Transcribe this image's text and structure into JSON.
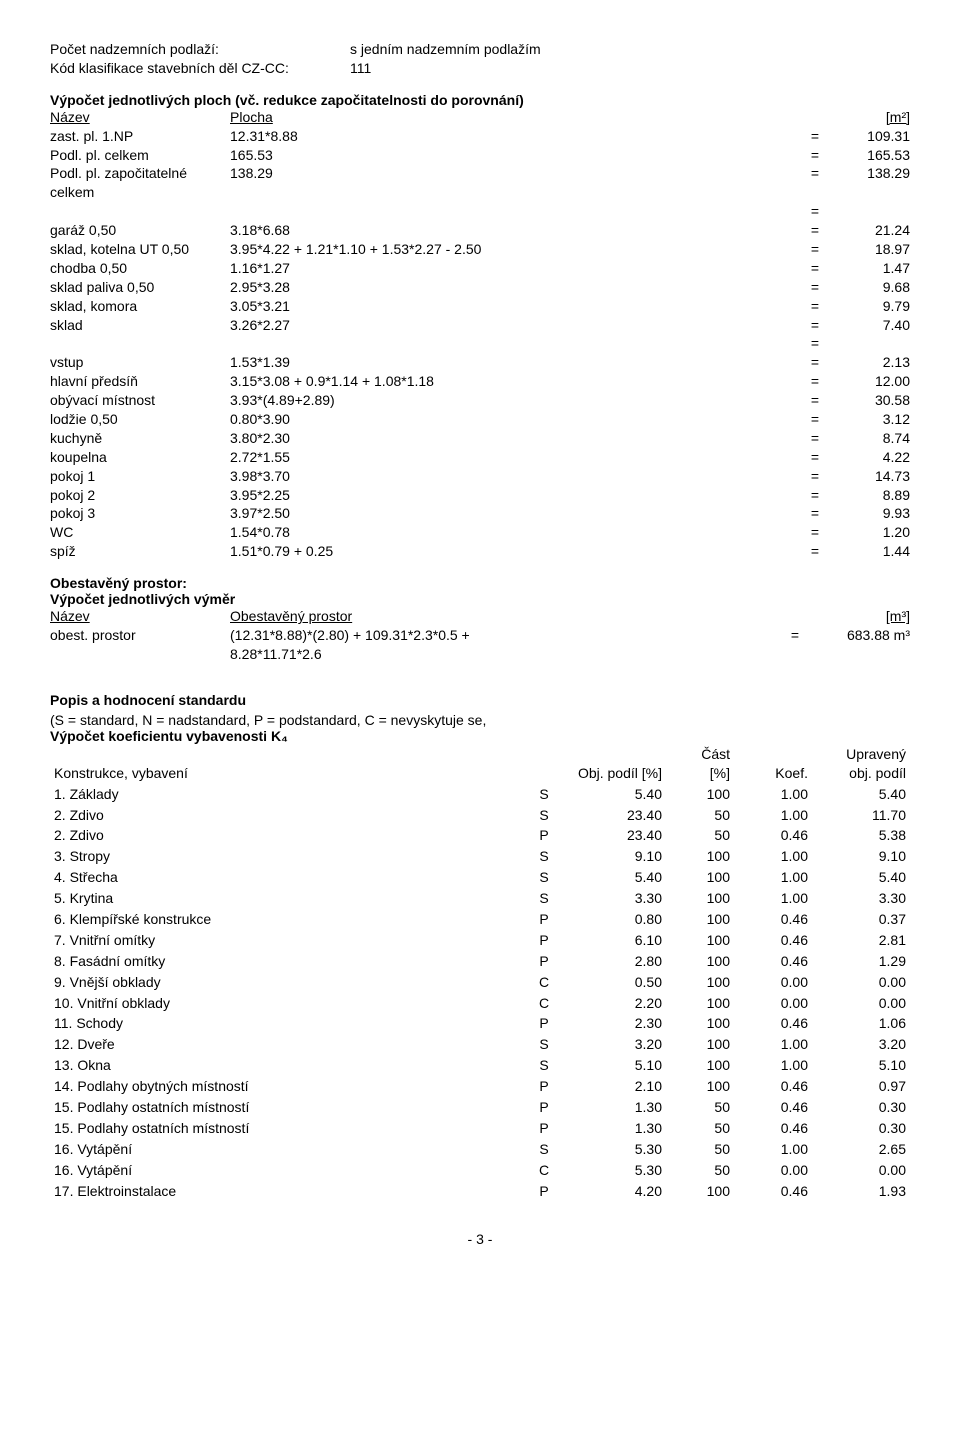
{
  "header": {
    "row1_label": "Počet nadzemních podlaží:",
    "row1_value": "s jedním nadzemním podlažím",
    "row2_label": "Kód klasifikace stavebních děl CZ-CC:",
    "row2_value": "111"
  },
  "area": {
    "title": "Výpočet jednotlivých ploch (vč. redukce započitatelnosti do porovnání)",
    "head_name": "Název",
    "head_area": "Plocha",
    "head_unit": "[m²]",
    "rows": [
      {
        "name": "zast. pl. 1.NP",
        "expr": "12.31*8.88",
        "eq": "=",
        "val": "109.31"
      },
      {
        "name": "Podl. pl. celkem",
        "expr": "165.53",
        "eq": "=",
        "val": "165.53"
      },
      {
        "name": "Podl. pl. započitatelné celkem",
        "expr": "138.29",
        "eq": "=",
        "val": "138.29"
      },
      {
        "name": "",
        "expr": "",
        "eq": "=",
        "val": ""
      },
      {
        "name": "garáž   0,50",
        "expr": "3.18*6.68",
        "eq": "=",
        "val": "21.24"
      },
      {
        "name": "sklad, kotelna UT   0,50",
        "expr": "3.95*4.22 + 1.21*1.10 + 1.53*2.27 - 2.50",
        "eq": "=",
        "val": "18.97"
      },
      {
        "name": "chodba   0,50",
        "expr": "1.16*1.27",
        "eq": "=",
        "val": "1.47"
      },
      {
        "name": "sklad paliva   0,50",
        "expr": "2.95*3.28",
        "eq": "=",
        "val": "9.68"
      },
      {
        "name": "sklad, komora",
        "expr": "3.05*3.21",
        "eq": "=",
        "val": "9.79"
      },
      {
        "name": "sklad",
        "expr": "3.26*2.27",
        "eq": "=",
        "val": "7.40"
      },
      {
        "name": "",
        "expr": "",
        "eq": "=",
        "val": ""
      },
      {
        "name": "vstup",
        "expr": "1.53*1.39",
        "eq": "=",
        "val": "2.13"
      },
      {
        "name": "hlavní předsíň",
        "expr": "3.15*3.08 + 0.9*1.14 + 1.08*1.18",
        "eq": "=",
        "val": "12.00"
      },
      {
        "name": "obývací místnost",
        "expr": "3.93*(4.89+2.89)",
        "eq": "=",
        "val": "30.58"
      },
      {
        "name": "lodžie   0,50",
        "expr": "0.80*3.90",
        "eq": "=",
        "val": "3.12"
      },
      {
        "name": "kuchyně",
        "expr": "3.80*2.30",
        "eq": "=",
        "val": "8.74"
      },
      {
        "name": "koupelna",
        "expr": "2.72*1.55",
        "eq": "=",
        "val": "4.22"
      },
      {
        "name": "pokoj 1",
        "expr": "3.98*3.70",
        "eq": "=",
        "val": "14.73"
      },
      {
        "name": "pokoj 2",
        "expr": "3.95*2.25",
        "eq": "=",
        "val": "8.89"
      },
      {
        "name": "pokoj 3",
        "expr": "3.97*2.50",
        "eq": "=",
        "val": "9.93"
      },
      {
        "name": "WC",
        "expr": "1.54*0.78",
        "eq": "=",
        "val": "1.20"
      },
      {
        "name": "spíž",
        "expr": "1.51*0.79 + 0.25",
        "eq": "=",
        "val": "1.44"
      }
    ]
  },
  "volume": {
    "title": "Obestavěný prostor:",
    "subtitle": "Výpočet jednotlivých výměr",
    "head_name": "Název",
    "head_vol": "Obestavěný prostor",
    "head_unit": "[m³]",
    "name": "obest. prostor",
    "expr1": "(12.31*8.88)*(2.80) + 109.31*2.3*0.5 +",
    "expr2": "8.28*11.71*2.6",
    "eq": "=",
    "val": "683.88 m³"
  },
  "standard": {
    "title": "Popis a hodnocení standardu",
    "note": "(S = standard, N = nadstandard, P = podstandard, C = nevyskytuje se,",
    "coef_title": "Výpočet koeficientu vybavenosti K₄",
    "head": {
      "name": "Konstrukce, vybavení",
      "obj": "",
      "podil": "Obj. podíl [%]",
      "cast1": "Část",
      "cast2": "[%]",
      "koef": "Koef.",
      "upr1": "Upravený",
      "upr2": "obj. podíl"
    },
    "rows": [
      {
        "name": "1. Základy",
        "t": "S",
        "p": "5.40",
        "c": "100",
        "k": "1.00",
        "u": "5.40"
      },
      {
        "name": "2. Zdivo",
        "t": "S",
        "p": "23.40",
        "c": "50",
        "k": "1.00",
        "u": "11.70"
      },
      {
        "name": "2. Zdivo",
        "t": "P",
        "p": "23.40",
        "c": "50",
        "k": "0.46",
        "u": "5.38"
      },
      {
        "name": "3. Stropy",
        "t": "S",
        "p": "9.10",
        "c": "100",
        "k": "1.00",
        "u": "9.10"
      },
      {
        "name": "4. Střecha",
        "t": "S",
        "p": "5.40",
        "c": "100",
        "k": "1.00",
        "u": "5.40"
      },
      {
        "name": "5. Krytina",
        "t": "S",
        "p": "3.30",
        "c": "100",
        "k": "1.00",
        "u": "3.30"
      },
      {
        "name": "6. Klempířské konstrukce",
        "t": "P",
        "p": "0.80",
        "c": "100",
        "k": "0.46",
        "u": "0.37"
      },
      {
        "name": "7. Vnitřní omítky",
        "t": "P",
        "p": "6.10",
        "c": "100",
        "k": "0.46",
        "u": "2.81"
      },
      {
        "name": "8. Fasádní omítky",
        "t": "P",
        "p": "2.80",
        "c": "100",
        "k": "0.46",
        "u": "1.29"
      },
      {
        "name": "9. Vnější obklady",
        "t": "C",
        "p": "0.50",
        "c": "100",
        "k": "0.00",
        "u": "0.00"
      },
      {
        "name": "10. Vnitřní obklady",
        "t": "C",
        "p": "2.20",
        "c": "100",
        "k": "0.00",
        "u": "0.00"
      },
      {
        "name": "11. Schody",
        "t": "P",
        "p": "2.30",
        "c": "100",
        "k": "0.46",
        "u": "1.06"
      },
      {
        "name": "12. Dveře",
        "t": "S",
        "p": "3.20",
        "c": "100",
        "k": "1.00",
        "u": "3.20"
      },
      {
        "name": "13. Okna",
        "t": "S",
        "p": "5.10",
        "c": "100",
        "k": "1.00",
        "u": "5.10"
      },
      {
        "name": "14. Podlahy obytných místností",
        "t": "P",
        "p": "2.10",
        "c": "100",
        "k": "0.46",
        "u": "0.97"
      },
      {
        "name": "15. Podlahy ostatních místností",
        "t": "P",
        "p": "1.30",
        "c": "50",
        "k": "0.46",
        "u": "0.30"
      },
      {
        "name": "15. Podlahy ostatních místností",
        "t": "P",
        "p": "1.30",
        "c": "50",
        "k": "0.46",
        "u": "0.30"
      },
      {
        "name": "16. Vytápění",
        "t": "S",
        "p": "5.30",
        "c": "50",
        "k": "1.00",
        "u": "2.65"
      },
      {
        "name": "16. Vytápění",
        "t": "C",
        "p": "5.30",
        "c": "50",
        "k": "0.00",
        "u": "0.00"
      },
      {
        "name": "17. Elektroinstalace",
        "t": "P",
        "p": "4.20",
        "c": "100",
        "k": "0.46",
        "u": "1.93"
      }
    ]
  },
  "page": "- 3 -"
}
